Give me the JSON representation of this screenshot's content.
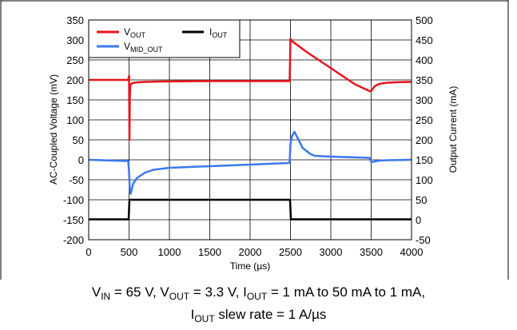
{
  "chart_data": {
    "type": "line",
    "xlabel_main": "Time (",
    "xlabel_unit": "µs",
    "xlabel_close": ")",
    "ylabel_left": "AC-Coupled Voltage (mV)",
    "ylabel_right": "Output Current (mA)",
    "xlim": [
      0,
      4000
    ],
    "ylim_left": [
      -200,
      350
    ],
    "ylim_right": [
      -50,
      500
    ],
    "x_ticks": [
      "0",
      "500",
      "1000",
      "1500",
      "2000",
      "2500",
      "3000",
      "3500",
      "4000"
    ],
    "y_ticks_left": [
      "350",
      "300",
      "250",
      "200",
      "150",
      "100",
      "50",
      "0",
      "-50",
      "-100",
      "-150",
      "-200"
    ],
    "y_ticks_right": [
      "500",
      "450",
      "400",
      "350",
      "300",
      "250",
      "200",
      "150",
      "100",
      "50",
      "0",
      "-50"
    ],
    "grid": true,
    "legend_position": "top-left",
    "series": [
      {
        "name": "V",
        "name_sub": "OUT",
        "axis": "left",
        "color": "#e8141b",
        "x": [
          0,
          490,
          500,
          505,
          510,
          515,
          520,
          540,
          600,
          700,
          900,
          1500,
          2000,
          2480,
          2490,
          2500,
          2510,
          2520,
          2700,
          2900,
          3100,
          3300,
          3480,
          3490,
          3500,
          3520,
          3550,
          3600,
          3700,
          3800,
          4000
        ],
        "y": [
          200,
          200,
          210,
          50,
          160,
          185,
          188,
          192,
          194,
          195,
          196,
          197,
          197,
          197,
          197,
          303,
          300,
          297,
          270,
          243,
          216,
          189,
          172,
          172,
          172,
          178,
          185,
          190,
          193,
          194,
          195
        ]
      },
      {
        "name": "V",
        "name_sub": "MID_OUT",
        "axis": "left",
        "color": "#3a78f0",
        "x": [
          0,
          300,
          490,
          500,
          510,
          520,
          550,
          600,
          700,
          800,
          1000,
          1500,
          2000,
          2480,
          2490,
          2500,
          2520,
          2550,
          2600,
          2650,
          2700,
          2750,
          2800,
          3000,
          3480,
          3500,
          3520,
          3600,
          3700,
          4000
        ],
        "y": [
          0,
          -2,
          -3,
          -30,
          -75,
          -85,
          -60,
          -45,
          -32,
          -25,
          -20,
          -16,
          -12,
          -8,
          -5,
          40,
          60,
          70,
          50,
          30,
          22,
          14,
          10,
          8,
          5,
          -5,
          -5,
          -2,
          -1,
          0
        ]
      },
      {
        "name": "I",
        "name_sub": "OUT",
        "axis": "right",
        "color": "#000000",
        "x": [
          0,
          495,
          505,
          2495,
          2505,
          4000
        ],
        "y": [
          1,
          1,
          50,
          50,
          1,
          1
        ]
      }
    ]
  },
  "caption": {
    "line1_a": "V",
    "line1_a_sub": "IN",
    "line1_b": " = 65 V, V",
    "line1_b_sub": "OUT",
    "line1_c": " = 3.3 V, I",
    "line1_c_sub": "OUT",
    "line1_d": " = 1 mA to 50 mA to 1 mA,",
    "line2_a": "I",
    "line2_a_sub": "OUT",
    "line2_b": " slew rate = 1 A/µs"
  }
}
